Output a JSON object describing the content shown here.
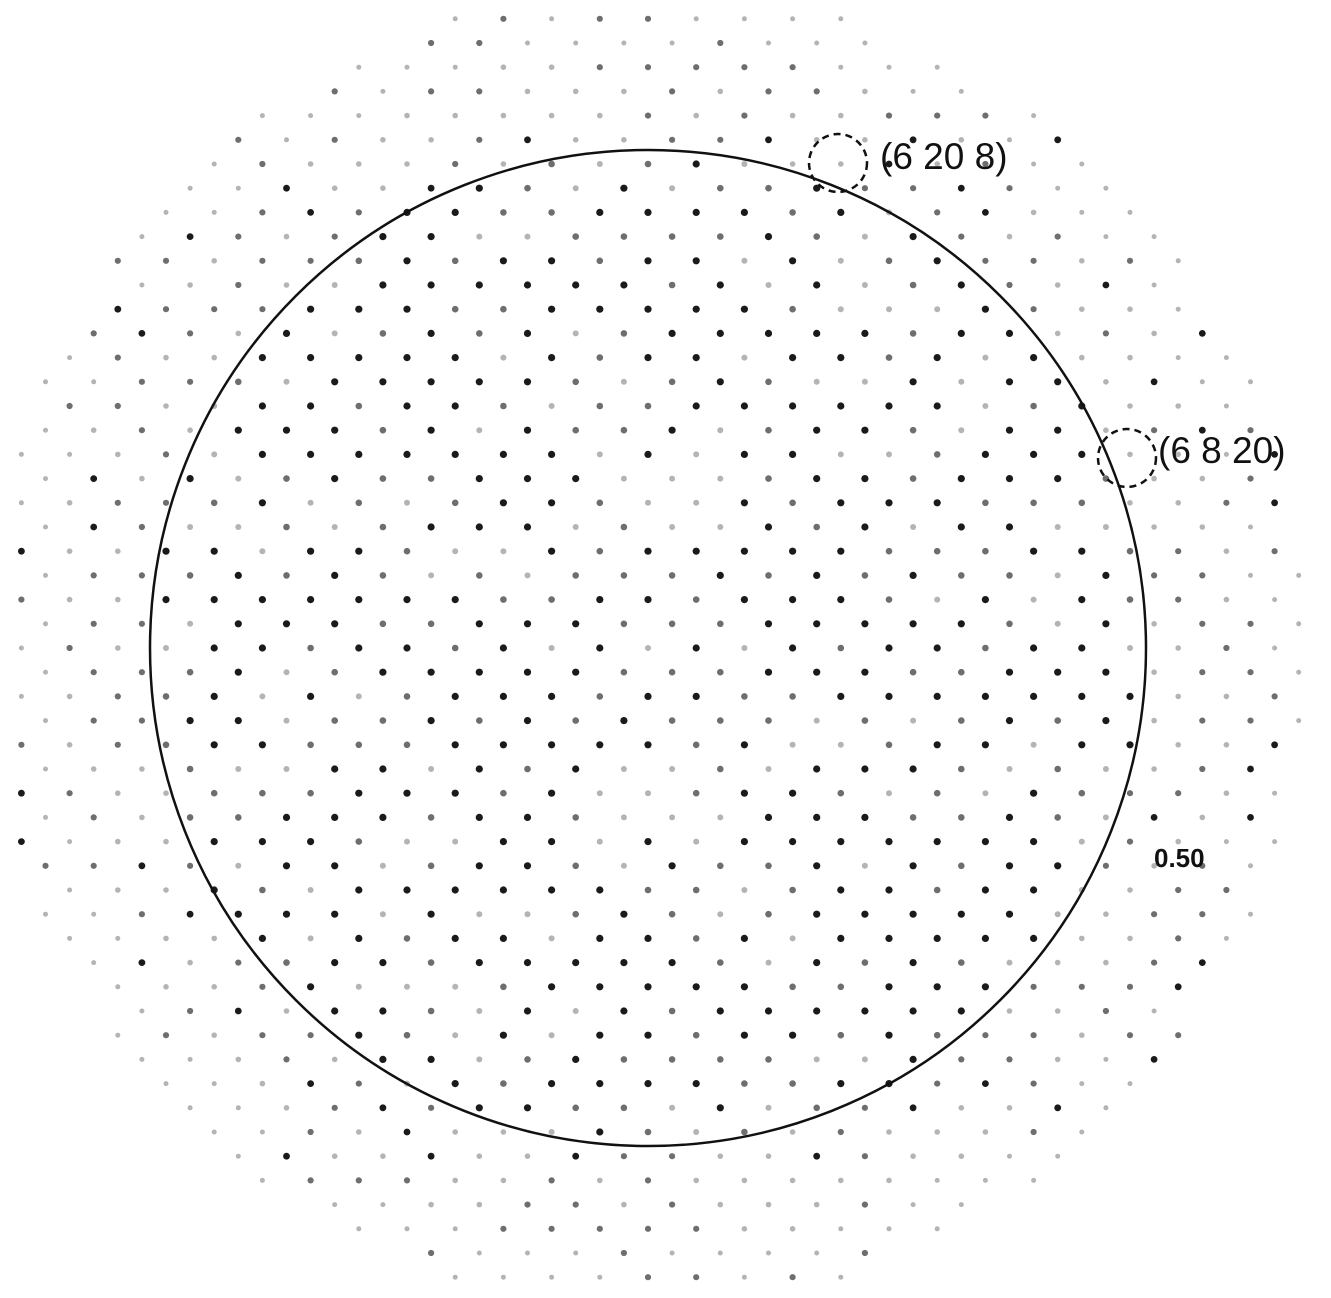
{
  "figure": {
    "annotations": [
      {
        "text": "(6 20 8)",
        "marker": "dashed-circle"
      },
      {
        "text": "(6 8 20)",
        "marker": "dashed-circle"
      }
    ],
    "resolution_ring": {
      "label": "0.50",
      "style": "solid-circle"
    },
    "colors": {
      "background": "#ffffff",
      "ink": "#111111",
      "strong_spot": "#1a1a1a",
      "medium_spot": "#6e6e6e",
      "weak_spot": "#b4b4b4"
    }
  }
}
